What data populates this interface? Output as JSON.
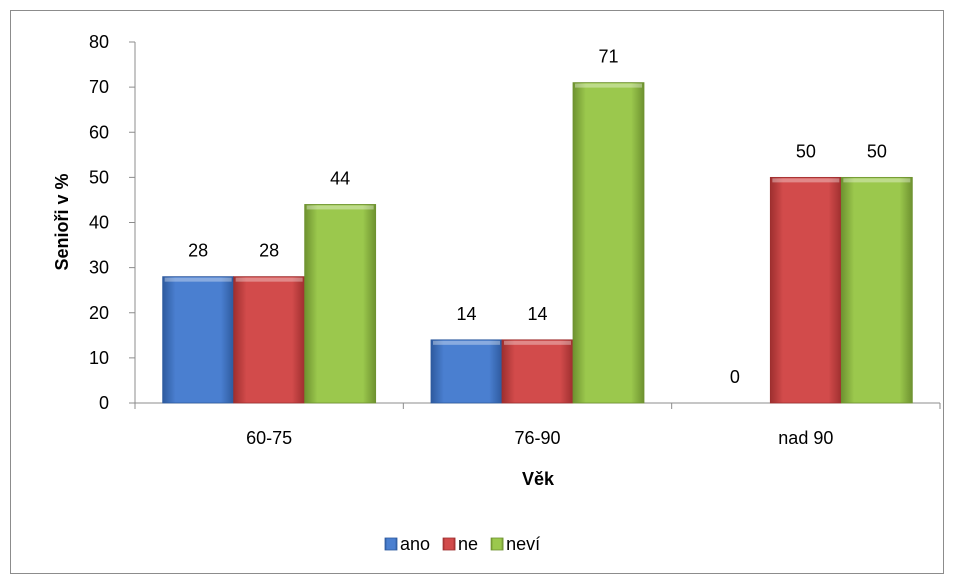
{
  "chart_data": {
    "type": "bar",
    "title": "",
    "xlabel": "Věk",
    "ylabel": "Senioři v %",
    "categories": [
      "60-75",
      "76-90",
      "nad 90"
    ],
    "ylim": [
      0,
      80
    ],
    "yticks": [
      0,
      10,
      20,
      30,
      40,
      50,
      60,
      70,
      80
    ],
    "grid": false,
    "legend_position": "bottom",
    "series": [
      {
        "name": "ano",
        "values": [
          28,
          14,
          0
        ],
        "labels": [
          "28",
          "14",
          "0"
        ],
        "color": "#4a7fd0",
        "dark": "#2e5a9e"
      },
      {
        "name": "ne",
        "values": [
          28,
          14,
          50
        ],
        "labels": [
          "28",
          "14",
          "50"
        ],
        "color": "#d24b4b",
        "dark": "#9e2f2f"
      },
      {
        "name": "neví",
        "values": [
          44,
          71,
          50
        ],
        "labels": [
          "44",
          "71",
          "50"
        ],
        "color": "#9bc84d",
        "dark": "#6e9230"
      }
    ]
  }
}
